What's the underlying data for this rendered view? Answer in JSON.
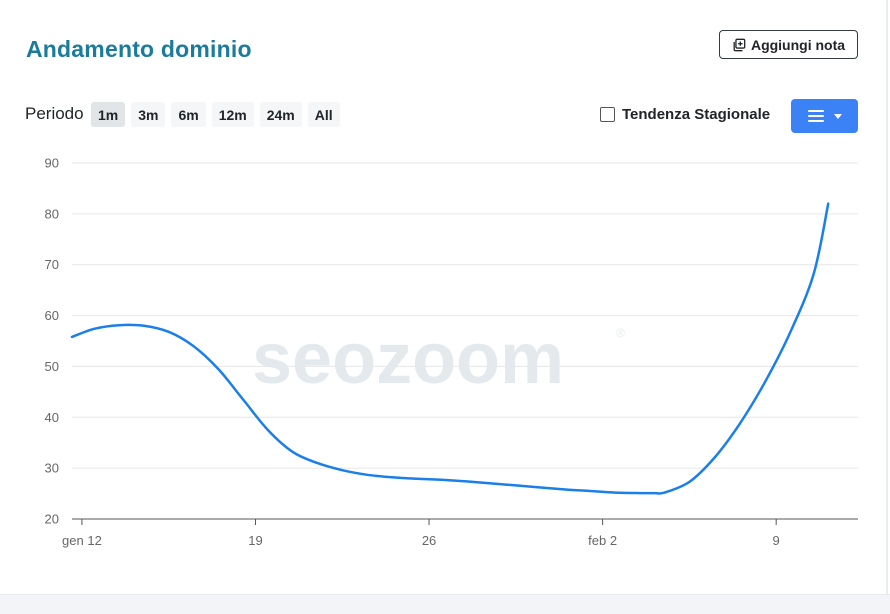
{
  "header": {
    "title": "Andamento dominio",
    "add_note_label": "Aggiungi nota"
  },
  "controls": {
    "period_label": "Periodo",
    "periods": [
      "1m",
      "3m",
      "6m",
      "12m",
      "24m",
      "All"
    ],
    "active_period": "1m",
    "seasonal_label": "Tendenza Stagionale",
    "seasonal_checked": false
  },
  "watermark": {
    "text": "seozoom",
    "mark": "®"
  },
  "colors": {
    "title": "#1b7b9c",
    "line": "#1a7fe8",
    "menu_button": "#3b82f6"
  },
  "chart_data": {
    "type": "line",
    "title": "",
    "xlabel": "",
    "ylabel": "",
    "ylim": [
      20,
      90
    ],
    "yticks": [
      20,
      30,
      40,
      50,
      60,
      70,
      80,
      90
    ],
    "xticks": [
      {
        "day": 12,
        "label": "gen 12"
      },
      {
        "day": 19,
        "label": "19"
      },
      {
        "day": 26,
        "label": "26"
      },
      {
        "day": 33,
        "label": "feb 2"
      },
      {
        "day": 40,
        "label": "9"
      }
    ],
    "xlim": [
      11.6,
      43.3
    ],
    "grid": true,
    "series": [
      {
        "x": [
          11.6,
          12.5,
          13.5,
          14.5,
          15.5,
          16.5,
          17.5,
          18.5,
          19.5,
          20.5,
          21.5,
          22.5,
          23.5,
          24.5,
          25.5,
          26.5,
          27.5,
          28.5,
          29.5,
          30.5,
          31.5,
          32.5,
          33.5,
          34.5,
          35.1,
          35.5,
          36.5,
          37.5,
          38.5,
          39.5,
          40.5,
          41.5,
          42.1
        ],
        "y": [
          55.8,
          57.4,
          58.1,
          58.0,
          56.8,
          54.0,
          49.5,
          43.5,
          37.5,
          33.2,
          31.0,
          29.6,
          28.7,
          28.2,
          27.9,
          27.7,
          27.4,
          27.0,
          26.6,
          26.2,
          25.8,
          25.5,
          25.2,
          25.1,
          25.1,
          25.2,
          27.3,
          32.0,
          38.5,
          46.5,
          56.0,
          68.0,
          82.0
        ]
      }
    ]
  }
}
